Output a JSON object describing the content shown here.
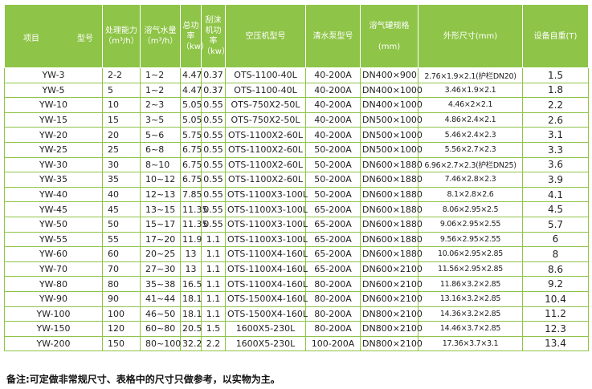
{
  "headers": {
    "item": "项目",
    "model": "型号",
    "capacity": "处理能力",
    "capacity_unit": "（m³/h）",
    "air_water": "溶气水量",
    "air_water_unit": "（m³/h）",
    "power": "总功率",
    "power_unit": "（kw）",
    "scraper": "刮沫机功率",
    "scraper_unit": "（kw）",
    "compressor": "空压机型号",
    "pump": "清水泵型号",
    "tank": "溶气罐规格",
    "tank_unit": "(mm)",
    "dims": "外形尺寸(mm)",
    "weight": "设备自重(T)"
  },
  "rows": [
    [
      "YW-3",
      "2-2",
      "1~2",
      "4.47",
      "0.37",
      "OTS-1100-40L",
      "40-200A",
      "DN400×900",
      "2.76×1.9×2.1(护栏DN20)",
      "1.5"
    ],
    [
      "YW-5",
      "5",
      "1~2",
      "4.47",
      "0.37",
      "OTS-1100-40L",
      "40-200A",
      "DN400×1000",
      "3.46×1.9×2.1",
      "1.8"
    ],
    [
      "YW-10",
      "10",
      "2~3",
      "5.05",
      "0.55",
      "OTS-750X2-50L",
      "40-200A",
      "DN400×1000",
      "4.46×2×2.1",
      "2.2"
    ],
    [
      "YW-15",
      "15",
      "3~5",
      "5.05",
      "0.55",
      "OTS-750X2-50L",
      "40-200A",
      "DN500×1000",
      "4.86×2.4×2.1",
      "2.6"
    ],
    [
      "YW-20",
      "20",
      "5~6",
      "5.75",
      "0.55",
      "OTS-1100X2-60L",
      "40-200A",
      "DN500×1000",
      "5.46×2.4×2.3",
      "3.1"
    ],
    [
      "YW-25",
      "25",
      "6~8",
      "6.75",
      "0.55",
      "OTS-1100X2-60L",
      "50-200A",
      "DN500×1000",
      "5.56×2.7×2.3",
      "3.3"
    ],
    [
      "YW-30",
      "30",
      "8~10",
      "6.75",
      "0.55",
      "OTS-1100X2-60L",
      "50-200A",
      "DN600×1880",
      "6.96×2.7×2.3(护栏DN25)",
      "3.6"
    ],
    [
      "YW-35",
      "35",
      "10~12",
      "6.75",
      "0.55",
      "OTS-1100X2-60L",
      "50-200A",
      "DN600×1880",
      "7.46×2.8×2.3",
      "3.9"
    ],
    [
      "YW-40",
      "40",
      "12~13",
      "7.85",
      "0.55",
      "OTS-1100X3-100L",
      "50-200A",
      "DN600×1880",
      "8.1×2.8×2.6",
      "4.1"
    ],
    [
      "YW-45",
      "45",
      "13~15",
      "11.35",
      "0.55",
      "OTS-1100X3-100L",
      "65-200A",
      "DN600×1880",
      "8.06×2.95×2.5",
      "4.5"
    ],
    [
      "YW-50",
      "50",
      "15~17",
      "11.35",
      "0.55",
      "OTS-1100X3-100L",
      "65-200A",
      "DN600×1880",
      "9.06×2.95×2.55",
      "5.7"
    ],
    [
      "YW-55",
      "55",
      "17~20",
      "11.9",
      "1.1",
      "OTS-1100X3-100L",
      "65-200A",
      "DN600×1880",
      "9.56×2.95×2.55",
      "6"
    ],
    [
      "YW-60",
      "60",
      "20~25",
      "13",
      "1.1",
      "OTS-1100X4-160L",
      "65-200A",
      "DN600×1880",
      "10.06×2.95×2.85",
      "8"
    ],
    [
      "YW-70",
      "70",
      "27~30",
      "13",
      "1.1",
      "OTS-1100X4-160L",
      "65-200A",
      "DN600×2100",
      "11.56×2.95×2.85",
      "8.6"
    ],
    [
      "YW-80",
      "80",
      "35~38",
      "16.5",
      "1.1",
      "OTS-1100X4-160L",
      "80-200A",
      "DN600×2100",
      "11.86×3.2×2.85",
      "9.2"
    ],
    [
      "YW-90",
      "90",
      "41~44",
      "18.1",
      "1.1",
      "OTS-1500X4-160L",
      "80-200A",
      "DN600×2100",
      "13.16×3.2×2.85",
      "10.4"
    ],
    [
      "YW-100",
      "100",
      "46~50",
      "18.1",
      "1.1",
      "OTS-1500X4-160L",
      "80-200A",
      "DN800×2100",
      "14.36×3.2×2.85",
      "11.2"
    ],
    [
      "YW-150",
      "120",
      "60~80",
      "20.5",
      "1.5",
      "1600X5-230L",
      "80-200A",
      "DN800×2100",
      "14.46×3.7×2.85",
      "12.3"
    ],
    [
      "YW-200",
      "150",
      "80~100",
      "32.2",
      "2.2",
      "1600X5-230L",
      "100-200A",
      "DN800×2100",
      "17.36×3.7×3.1",
      "13.4"
    ]
  ],
  "footnote": "备注:可定做非常规尺寸、表格中的尺寸只做参考，以实物为主。"
}
